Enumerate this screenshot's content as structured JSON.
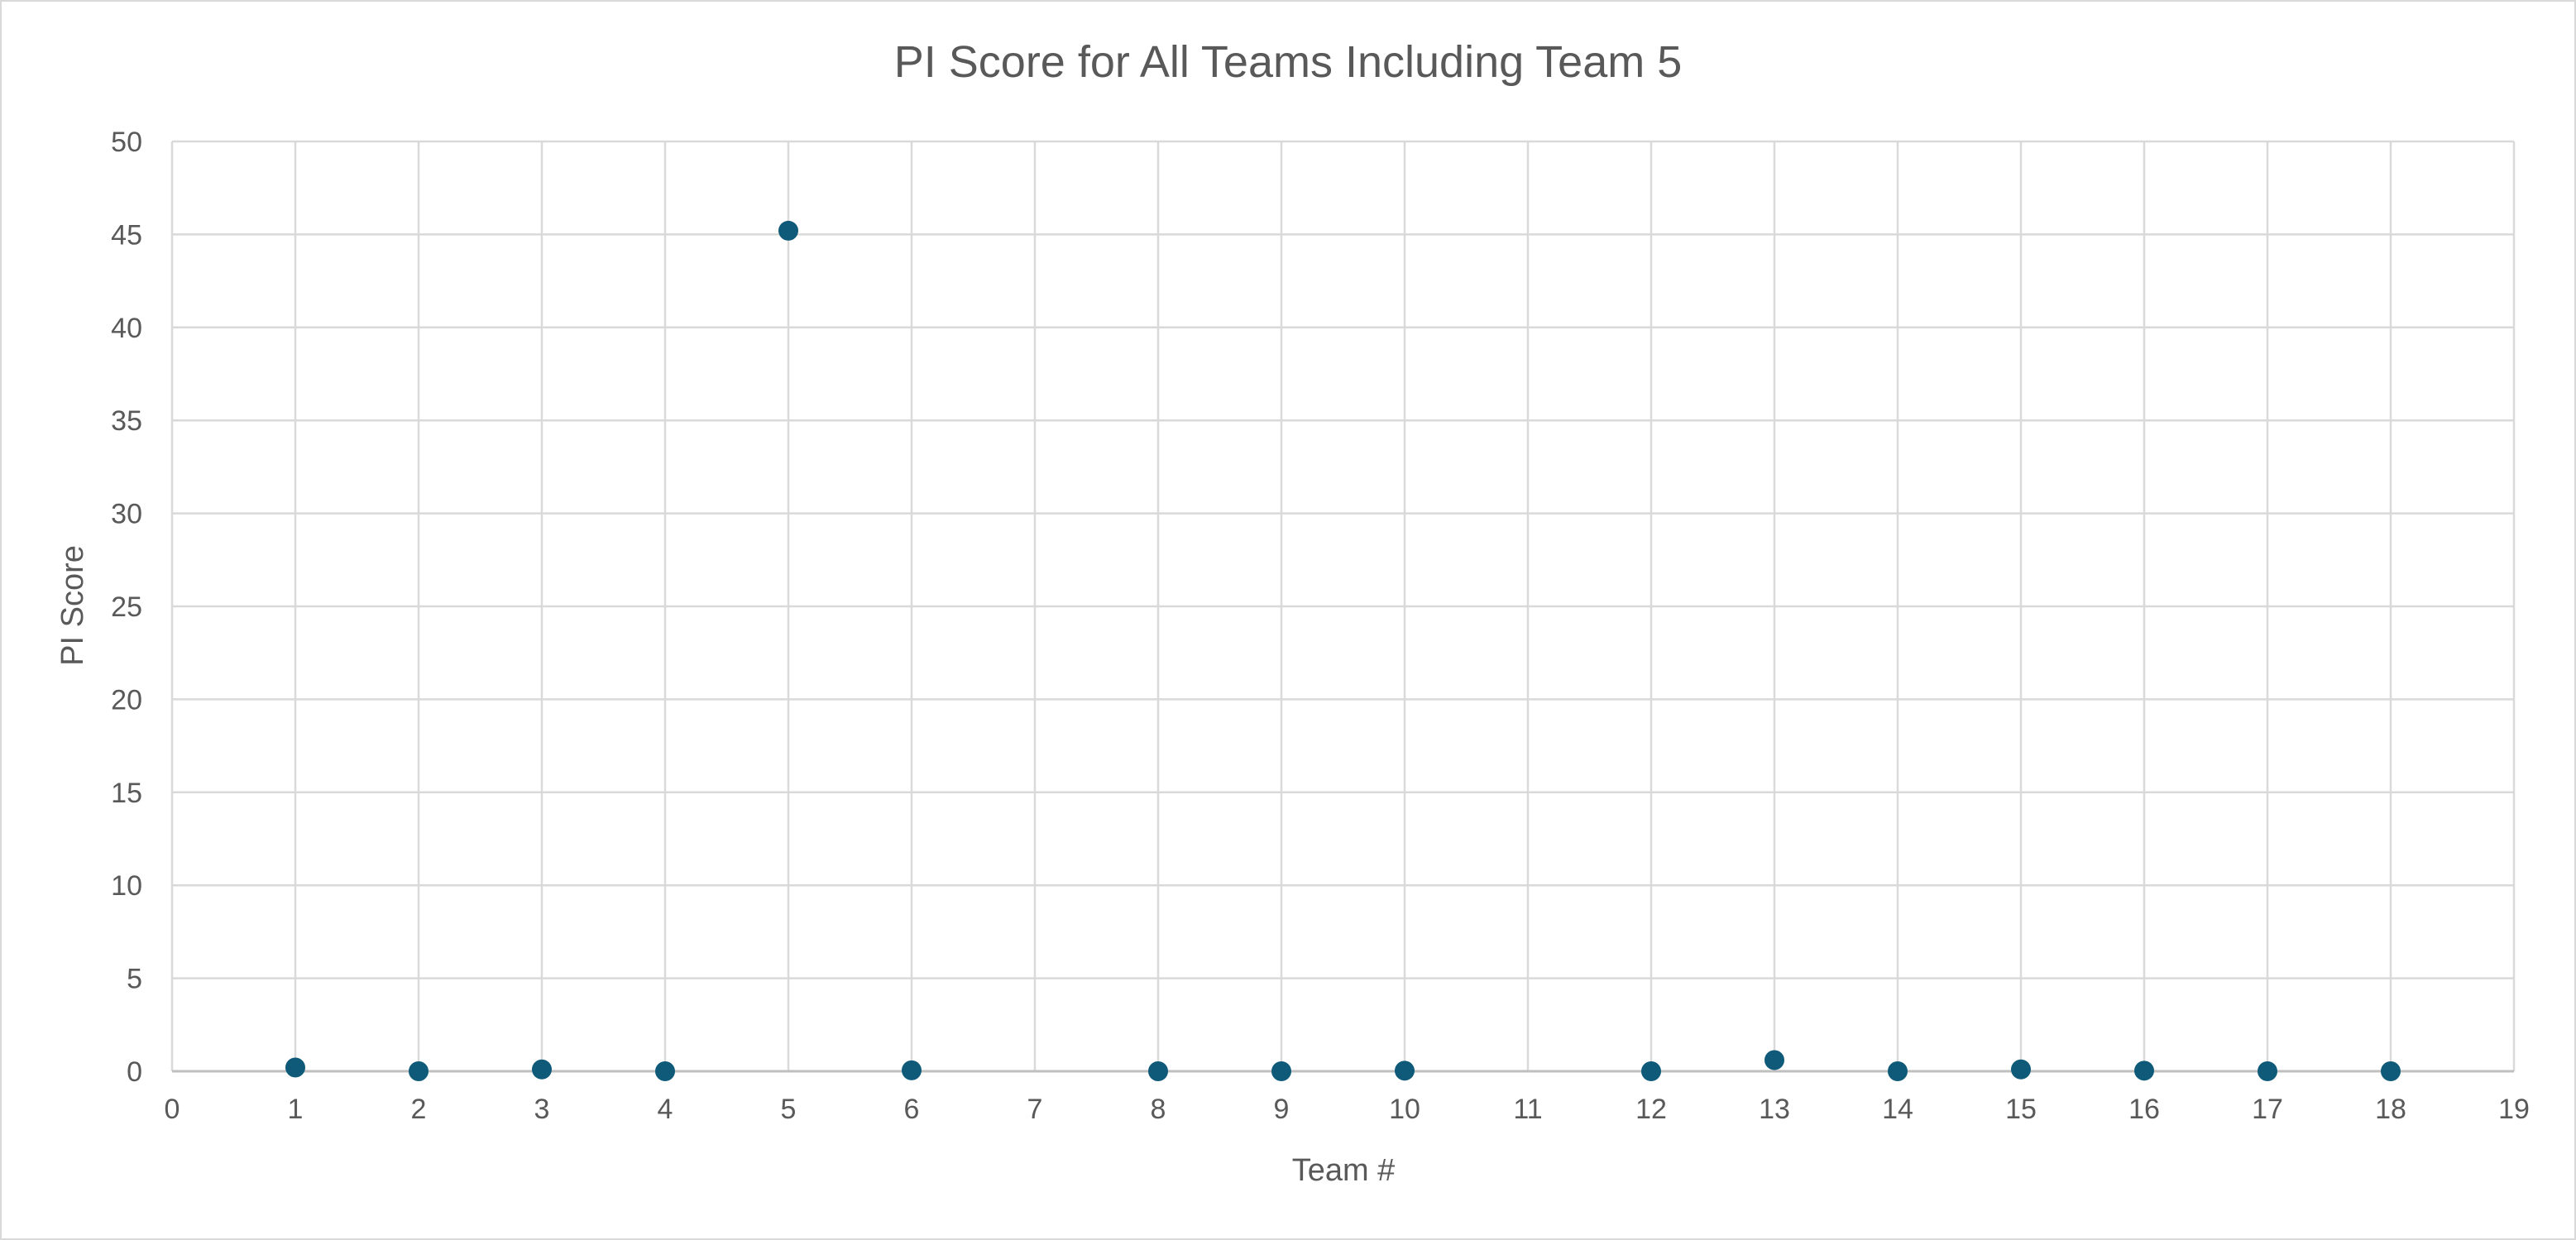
{
  "chart_data": {
    "type": "scatter",
    "title": "PI Score for All Teams Including Team 5",
    "xlabel": "Team #",
    "ylabel": "PI Score",
    "xlim": [
      0,
      19
    ],
    "ylim": [
      0,
      50
    ],
    "x_ticks": [
      0,
      1,
      2,
      3,
      4,
      5,
      6,
      7,
      8,
      9,
      10,
      11,
      12,
      13,
      14,
      15,
      16,
      17,
      18,
      19
    ],
    "y_ticks": [
      0,
      5,
      10,
      15,
      20,
      25,
      30,
      35,
      40,
      45,
      50
    ],
    "grid": true,
    "legend": "none",
    "marker_color": "#0e5a78",
    "series": [
      {
        "points": [
          {
            "x": 1,
            "y": 0.2
          },
          {
            "x": 2,
            "y": 0.0
          },
          {
            "x": 3,
            "y": 0.1
          },
          {
            "x": 4,
            "y": 0.0
          },
          {
            "x": 5,
            "y": 45.2
          },
          {
            "x": 6,
            "y": 0.05
          },
          {
            "x": 8,
            "y": 0.0
          },
          {
            "x": 9,
            "y": 0.0
          },
          {
            "x": 10,
            "y": 0.03
          },
          {
            "x": 12,
            "y": 0.0
          },
          {
            "x": 13,
            "y": 0.6
          },
          {
            "x": 14,
            "y": 0.0
          },
          {
            "x": 15,
            "y": 0.1
          },
          {
            "x": 16,
            "y": 0.03
          },
          {
            "x": 17,
            "y": 0.0
          },
          {
            "x": 18,
            "y": 0.0
          }
        ]
      }
    ]
  }
}
